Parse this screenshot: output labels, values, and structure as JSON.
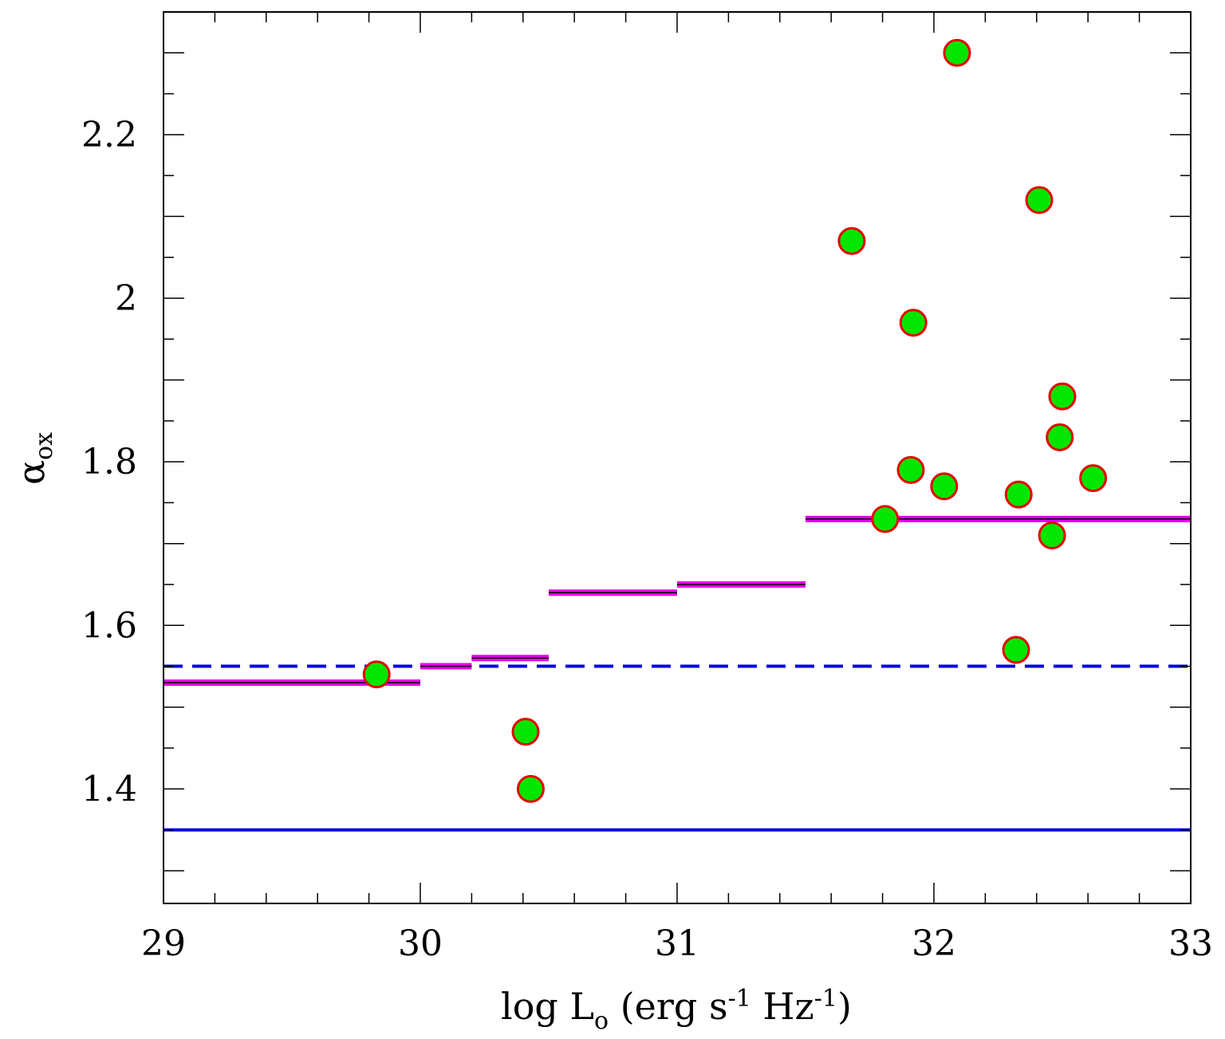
{
  "chart_data": {
    "type": "scatter",
    "title": "",
    "xlabel": {
      "main": "log L",
      "sub": "o",
      "units_open": " (erg s",
      "exp1": "-1",
      "units_mid": " Hz",
      "exp2": "-1",
      "units_close": ")"
    },
    "ylabel": {
      "main": "α",
      "sub": "ox"
    },
    "xlim": [
      29,
      33
    ],
    "ylim": [
      1.26,
      2.35
    ],
    "x_ticks": [
      29,
      30,
      31,
      32,
      33
    ],
    "x_tick_labels": [
      "29",
      "30",
      "31",
      "32",
      "33"
    ],
    "y_ticks": [
      1.4,
      1.6,
      1.8,
      2.0,
      2.2
    ],
    "y_tick_labels": [
      "1.4",
      "1.6",
      "1.8",
      "2",
      "2.2"
    ],
    "grid": false,
    "points": [
      {
        "x": 29.83,
        "y": 1.54
      },
      {
        "x": 30.41,
        "y": 1.47
      },
      {
        "x": 30.43,
        "y": 1.4
      },
      {
        "x": 31.68,
        "y": 2.07
      },
      {
        "x": 31.81,
        "y": 1.73
      },
      {
        "x": 31.91,
        "y": 1.79
      },
      {
        "x": 31.92,
        "y": 1.97
      },
      {
        "x": 32.04,
        "y": 1.77
      },
      {
        "x": 32.09,
        "y": 2.3
      },
      {
        "x": 32.32,
        "y": 1.57
      },
      {
        "x": 32.33,
        "y": 1.76
      },
      {
        "x": 32.41,
        "y": 2.12
      },
      {
        "x": 32.46,
        "y": 1.71
      },
      {
        "x": 32.49,
        "y": 1.83
      },
      {
        "x": 32.5,
        "y": 1.88
      },
      {
        "x": 32.62,
        "y": 1.78
      }
    ],
    "binned_means": [
      {
        "x0": 29.0,
        "x1": 30.0,
        "y": 1.53
      },
      {
        "x0": 30.0,
        "x1": 30.2,
        "y": 1.55
      },
      {
        "x0": 30.2,
        "x1": 30.5,
        "y": 1.56
      },
      {
        "x0": 30.5,
        "x1": 31.0,
        "y": 1.64
      },
      {
        "x0": 31.0,
        "x1": 31.5,
        "y": 1.65
      },
      {
        "x0": 31.5,
        "x1": 33.0,
        "y": 1.73
      }
    ],
    "reference_lines": [
      {
        "y": 1.55,
        "style": "dashed",
        "color": "#0000e6"
      },
      {
        "y": 1.35,
        "style": "solid",
        "color": "#0000e6"
      }
    ],
    "colors": {
      "point_fill": "#00e600",
      "point_edge": "#e60000",
      "bin_line": "#e600e6",
      "bin_core": "#000000",
      "frame": "#000000"
    }
  }
}
